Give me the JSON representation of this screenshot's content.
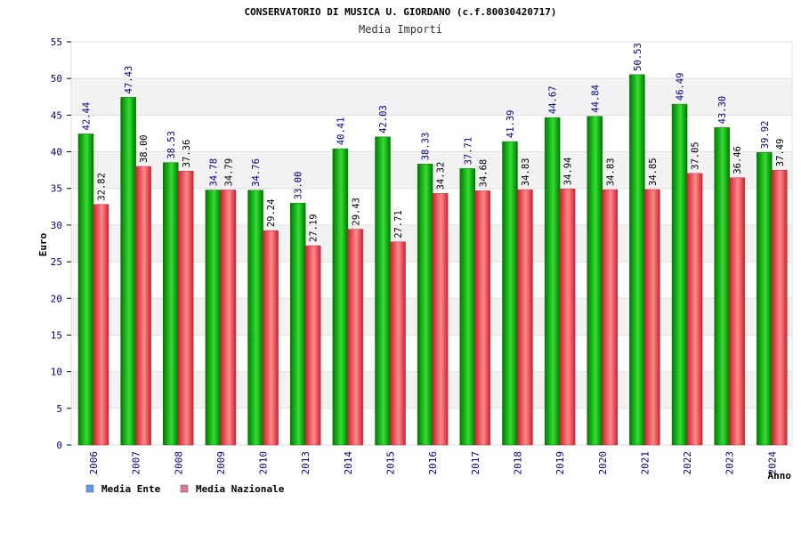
{
  "colors": {
    "ente_dark": "#007A00",
    "ente_light": "#33DD33",
    "naz_dark": "#CC2233",
    "naz_light": "#FF8A8A",
    "label_blue": "#000080",
    "band": "#F2F2F2",
    "legend_ente": "#6699EE",
    "legend_naz": "#DD7799"
  },
  "chart_data": {
    "type": "bar",
    "title": "CONSERVATORIO DI MUSICA U. GIORDANO (c.f.80030420717)",
    "subtitle": "Media Importi",
    "xlabel": "Anno",
    "ylabel": "Euro",
    "ylim": [
      0,
      55
    ],
    "yticks": [
      0,
      5,
      10,
      15,
      20,
      25,
      30,
      35,
      40,
      45,
      50,
      55
    ],
    "categories": [
      "2006",
      "2007",
      "2008",
      "2009",
      "2010",
      "2013",
      "2014",
      "2015",
      "2016",
      "2017",
      "2018",
      "2019",
      "2020",
      "2021",
      "2022",
      "2023",
      "2024"
    ],
    "series": [
      {
        "name": "Media Ente",
        "values": [
          42.44,
          47.43,
          38.53,
          34.78,
          34.76,
          33.0,
          40.41,
          42.03,
          38.33,
          37.71,
          41.39,
          44.67,
          44.84,
          50.53,
          46.49,
          43.3,
          39.92
        ],
        "labels": [
          "42.44",
          "47.43",
          "38.53",
          "34.78",
          "34.76",
          "33.00",
          "40.41",
          "42.03",
          "38.33",
          "37.71",
          "41.39",
          "44.67",
          "44.84",
          "50.53",
          "46.49",
          "43.30",
          "39.92"
        ]
      },
      {
        "name": "Media Nazionale",
        "values": [
          32.82,
          38.0,
          37.36,
          34.79,
          29.24,
          27.19,
          29.43,
          27.71,
          34.32,
          34.68,
          34.83,
          34.94,
          34.83,
          34.85,
          37.05,
          36.46,
          37.49
        ],
        "labels": [
          "32.82",
          "38.00",
          "37.36",
          "34.79",
          "29.24",
          "27.19",
          "29.43",
          "27.71",
          "34.32",
          "34.68",
          "34.83",
          "34.94",
          "34.83",
          "34.85",
          "37.05",
          "36.46",
          "37.49"
        ]
      }
    ],
    "legend": [
      {
        "label": "Media Ente"
      },
      {
        "label": "Media Nazionale"
      }
    ]
  }
}
